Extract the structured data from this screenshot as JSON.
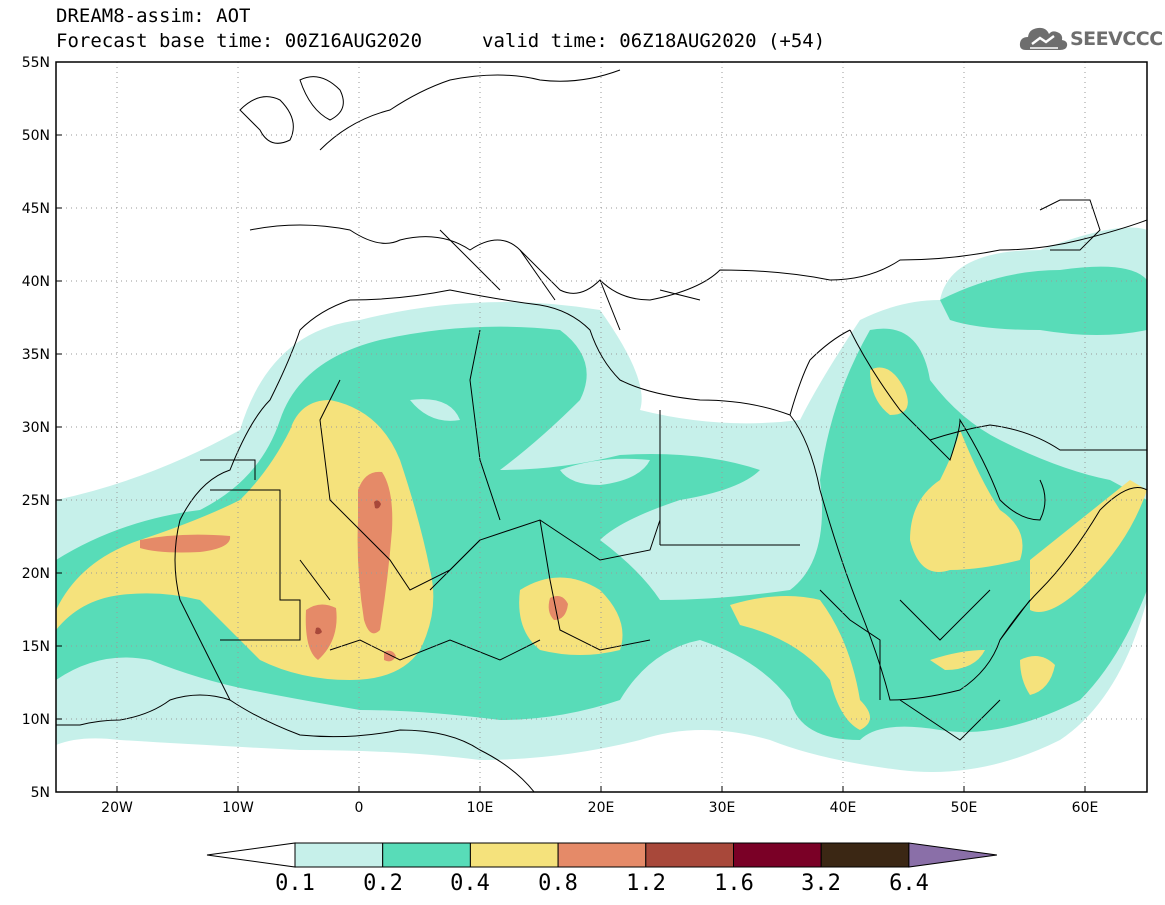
{
  "header": {
    "title": "DREAM8-assim: AOT",
    "base_time": "Forecast base time: 00Z16AUG2020",
    "valid_time": "valid time: 06Z18AUG2020 (+54)"
  },
  "logo": {
    "text": "SEEVCCC",
    "icon": "cloud-icon",
    "color": "#6e6e6e"
  },
  "map": {
    "lon_range": [
      -25,
      65
    ],
    "lat_range": [
      5,
      55
    ],
    "lat_ticks": [
      "5N",
      "10N",
      "15N",
      "20N",
      "25N",
      "30N",
      "35N",
      "40N",
      "45N",
      "50N",
      "55N"
    ],
    "lon_ticks": [
      "20W",
      "10W",
      "0",
      "10E",
      "20E",
      "30E",
      "40E",
      "50E",
      "60E"
    ]
  },
  "colorbar": {
    "labels": [
      "0.1",
      "0.2",
      "0.4",
      "0.8",
      "1.2",
      "1.6",
      "3.2",
      "6.4"
    ],
    "colors": [
      "#ffffff",
      "#c6f0ea",
      "#58dcb8",
      "#f5e27c",
      "#e58a68",
      "#a8483a",
      "#7a0026",
      "#3b2714",
      "#8a6fa8"
    ]
  }
}
